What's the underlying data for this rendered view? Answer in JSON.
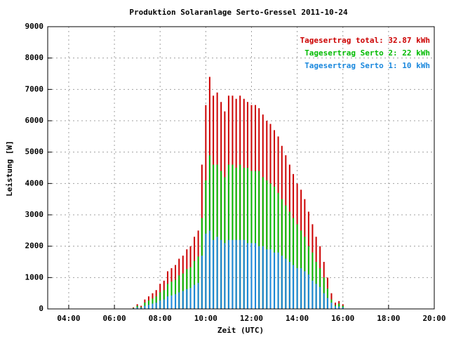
{
  "chart_data": {
    "type": "impulse",
    "title": "Produktion Solaranlage Serto-Gressel 2011-10-24",
    "x_label": "Zeit (UTC)",
    "y_label": "Leistung [W]",
    "x": [
      6.83,
      7,
      7.17,
      7.33,
      7.5,
      7.67,
      7.83,
      8,
      8.17,
      8.33,
      8.5,
      8.67,
      8.83,
      9,
      9.17,
      9.33,
      9.5,
      9.67,
      9.83,
      10,
      10.17,
      10.33,
      10.5,
      10.67,
      10.83,
      11,
      11.17,
      11.33,
      11.5,
      11.67,
      11.83,
      12,
      12.17,
      12.33,
      12.5,
      12.67,
      12.83,
      13,
      13.17,
      13.33,
      13.5,
      13.67,
      13.83,
      14,
      14.17,
      14.33,
      14.5,
      14.67,
      14.83,
      15,
      15.17,
      15.33,
      15.5,
      15.67,
      15.83,
      16,
      16.17
    ],
    "series": [
      {
        "name": "Tagesertrag total: 32.87 kWh",
        "color": "#cc0000",
        "values": [
          50,
          150,
          100,
          300,
          400,
          500,
          600,
          800,
          900,
          1200,
          1300,
          1400,
          1600,
          1700,
          1900,
          2000,
          2300,
          2500,
          4600,
          6500,
          7400,
          6800,
          6900,
          6600,
          6300,
          6800,
          6800,
          6700,
          6800,
          6700,
          6600,
          6500,
          6500,
          6400,
          6200,
          6000,
          5900,
          5700,
          5500,
          5200,
          4900,
          4600,
          4300,
          4000,
          3800,
          3500,
          3100,
          2700,
          2300,
          2000,
          1500,
          1000,
          500,
          200,
          250,
          150,
          0
        ]
      },
      {
        "name": "Tagesertrag Serto 2: 22 kWh",
        "color": "#00bb00",
        "values": [
          30,
          100,
          60,
          200,
          270,
          330,
          400,
          530,
          600,
          800,
          870,
          930,
          1070,
          1130,
          1270,
          1330,
          1530,
          1670,
          2900,
          4100,
          4900,
          4600,
          4600,
          4400,
          4200,
          4600,
          4600,
          4500,
          4600,
          4500,
          4500,
          4400,
          4400,
          4400,
          4200,
          4100,
          4000,
          3900,
          3700,
          3500,
          3300,
          3100,
          2900,
          2700,
          2500,
          2300,
          2000,
          1800,
          1500,
          1300,
          1000,
          650,
          300,
          120,
          170,
          100,
          0
        ]
      },
      {
        "name": "Tagesertrag Serto 1: 10 kWh",
        "color": "#1a88dd",
        "values": [
          20,
          50,
          40,
          100,
          130,
          170,
          200,
          270,
          300,
          400,
          430,
          470,
          530,
          570,
          630,
          670,
          770,
          830,
          1700,
          2400,
          2500,
          2200,
          2300,
          2200,
          2100,
          2200,
          2200,
          2200,
          2200,
          2200,
          2100,
          2100,
          2100,
          2000,
          2000,
          1900,
          1900,
          1800,
          1800,
          1700,
          1600,
          1500,
          1400,
          1300,
          1300,
          1200,
          1100,
          900,
          800,
          700,
          500,
          350,
          200,
          80,
          80,
          50,
          0
        ]
      }
    ],
    "xlim": [
      3.08,
      20
    ],
    "xticks": [
      {
        "value": 4,
        "label": "04:00"
      },
      {
        "value": 6,
        "label": "06:00"
      },
      {
        "value": 8,
        "label": "08:00"
      },
      {
        "value": 10,
        "label": "10:00"
      },
      {
        "value": 12,
        "label": "12:00"
      },
      {
        "value": 14,
        "label": "14:00"
      },
      {
        "value": 16,
        "label": "16:00"
      },
      {
        "value": 18,
        "label": "18:00"
      },
      {
        "value": 20,
        "label": "20:00"
      }
    ],
    "ylim": [
      0,
      9000
    ],
    "yticks": [
      0,
      1000,
      2000,
      3000,
      4000,
      5000,
      6000,
      7000,
      8000,
      9000
    ],
    "grid": true,
    "legend": "top-right"
  }
}
